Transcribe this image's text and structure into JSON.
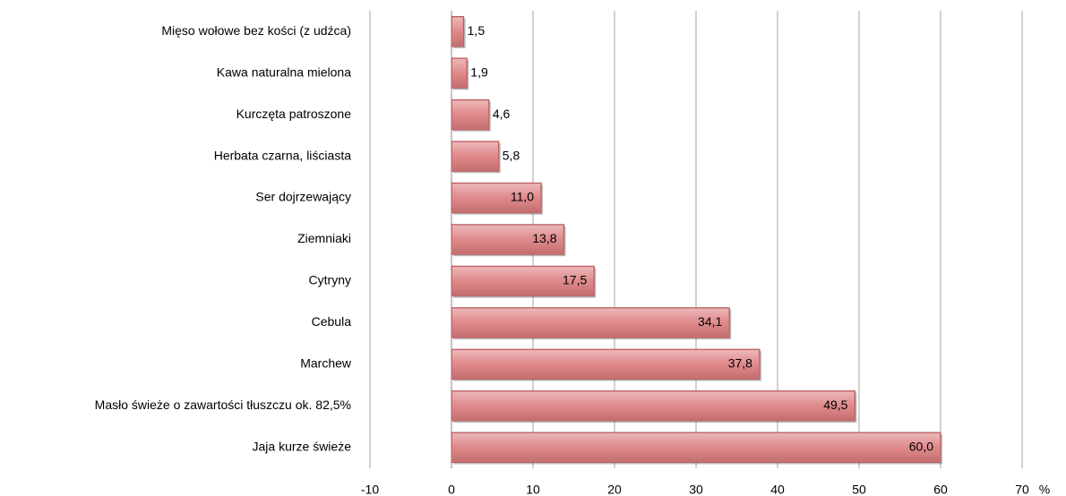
{
  "chart_data": {
    "type": "bar",
    "orientation": "horizontal",
    "categories": [
      "Mięso wołowe bez kości (z udźca)",
      "Kawa naturalna mielona",
      "Kurczęta patroszone",
      "Herbata czarna, liściasta",
      "Ser dojrzewający",
      "Ziemniaki",
      "Cytryny",
      "Cebula",
      "Marchew",
      "Masło świeże o zawartości tłuszczu ok. 82,5%",
      "Jaja kurze świeże"
    ],
    "values": [
      1.5,
      1.9,
      4.6,
      5.8,
      11.0,
      13.8,
      17.5,
      34.1,
      37.8,
      49.5,
      60.0
    ],
    "value_labels": [
      "1,5",
      "1,9",
      "4,6",
      "5,8",
      "11,0",
      "13,8",
      "17,5",
      "34,1",
      "37,8",
      "49,5",
      "60,0"
    ],
    "color": "#dc7c7e",
    "xlabel": "%",
    "xlim": [
      -10,
      70
    ],
    "xticks": [
      -10,
      0,
      10,
      20,
      30,
      40,
      50,
      60,
      70
    ],
    "grid": true
  }
}
